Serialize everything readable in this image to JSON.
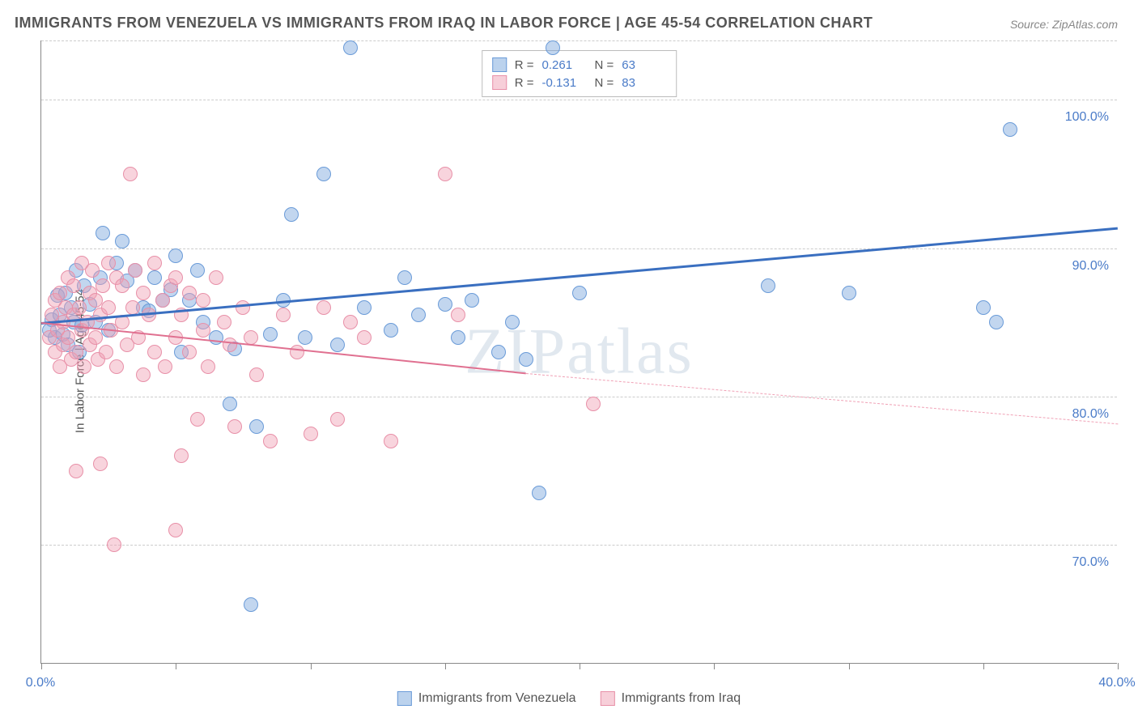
{
  "title": "IMMIGRANTS FROM VENEZUELA VS IMMIGRANTS FROM IRAQ IN LABOR FORCE | AGE 45-54 CORRELATION CHART",
  "source": "Source: ZipAtlas.com",
  "watermark": "ZIPatlas",
  "y_axis_label": "In Labor Force | Age 45-54",
  "chart": {
    "type": "scatter",
    "background_color": "#ffffff",
    "grid_color": "#cccccc",
    "axis_color": "#888888",
    "tick_label_color": "#4a7bc8",
    "xlim": [
      0,
      40
    ],
    "ylim": [
      62,
      104
    ],
    "x_ticks": [
      0,
      5,
      10,
      15,
      20,
      25,
      30,
      35,
      40
    ],
    "x_tick_labels": {
      "0": "0.0%",
      "40": "40.0%"
    },
    "y_gridlines": [
      70,
      80,
      90,
      100,
      104
    ],
    "y_tick_labels": {
      "70": "70.0%",
      "80": "80.0%",
      "90": "90.0%",
      "100": "100.0%"
    },
    "marker_radius": 9,
    "marker_opacity": 0.55,
    "series": [
      {
        "name": "Immigrants from Venezuela",
        "color_fill": "rgba(120,165,220,0.45)",
        "color_stroke": "#6a9bd8",
        "r": "0.261",
        "n": "63",
        "trend": {
          "x1": 0,
          "y1": 85.0,
          "x2": 40,
          "y2": 91.4,
          "color": "#3a6fc0",
          "width": 3,
          "dash": "solid"
        },
        "points": [
          [
            0.4,
            85.2
          ],
          [
            0.5,
            84.0
          ],
          [
            0.6,
            86.8
          ],
          [
            0.7,
            85.5
          ],
          [
            0.8,
            84.2
          ],
          [
            0.9,
            87.0
          ],
          [
            1.0,
            83.5
          ],
          [
            1.1,
            86.0
          ],
          [
            1.2,
            85.0
          ],
          [
            1.3,
            88.5
          ],
          [
            1.5,
            84.8
          ],
          [
            1.6,
            87.5
          ],
          [
            1.8,
            86.2
          ],
          [
            2.0,
            85.0
          ],
          [
            2.2,
            88.0
          ],
          [
            2.5,
            84.5
          ],
          [
            2.8,
            89.0
          ],
          [
            3.0,
            90.5
          ],
          [
            3.2,
            87.8
          ],
          [
            3.5,
            88.5
          ],
          [
            3.8,
            86.0
          ],
          [
            4.0,
            85.8
          ],
          [
            4.2,
            88.0
          ],
          [
            4.5,
            86.5
          ],
          [
            4.8,
            87.2
          ],
          [
            5.2,
            83.0
          ],
          [
            5.5,
            86.5
          ],
          [
            5.8,
            88.5
          ],
          [
            6.0,
            85.0
          ],
          [
            6.5,
            84.0
          ],
          [
            7.0,
            79.5
          ],
          [
            7.2,
            83.2
          ],
          [
            7.8,
            66.0
          ],
          [
            8.0,
            78.0
          ],
          [
            8.5,
            84.2
          ],
          [
            9.0,
            86.5
          ],
          [
            9.3,
            92.3
          ],
          [
            9.8,
            84.0
          ],
          [
            10.5,
            95.0
          ],
          [
            11.0,
            83.5
          ],
          [
            11.5,
            103.5
          ],
          [
            12.0,
            86.0
          ],
          [
            13.0,
            84.5
          ],
          [
            14.0,
            85.5
          ],
          [
            15.0,
            86.2
          ],
          [
            15.5,
            84.0
          ],
          [
            16.0,
            86.5
          ],
          [
            17.0,
            83.0
          ],
          [
            17.5,
            85.0
          ],
          [
            18.0,
            82.5
          ],
          [
            18.5,
            73.5
          ],
          [
            19.0,
            103.5
          ],
          [
            20.0,
            87.0
          ],
          [
            27.0,
            87.5
          ],
          [
            30.0,
            87.0
          ],
          [
            35.0,
            86.0
          ],
          [
            35.5,
            85.0
          ],
          [
            36.0,
            98.0
          ],
          [
            13.5,
            88.0
          ],
          [
            5.0,
            89.5
          ],
          [
            2.3,
            91.0
          ],
          [
            1.4,
            83.0
          ],
          [
            0.3,
            84.5
          ]
        ]
      },
      {
        "name": "Immigrants from Iraq",
        "color_fill": "rgba(240,160,180,0.45)",
        "color_stroke": "#e890a8",
        "r": "-0.131",
        "n": "83",
        "trend_solid": {
          "x1": 0,
          "y1": 85.0,
          "x2": 18,
          "y2": 81.6,
          "color": "#e07090",
          "width": 2
        },
        "trend_dash": {
          "x1": 18,
          "y1": 81.6,
          "x2": 40,
          "y2": 78.2,
          "color": "#f0a0b5",
          "width": 1.5
        },
        "points": [
          [
            0.3,
            84.0
          ],
          [
            0.4,
            85.5
          ],
          [
            0.5,
            83.0
          ],
          [
            0.5,
            86.5
          ],
          [
            0.6,
            84.5
          ],
          [
            0.7,
            82.0
          ],
          [
            0.7,
            87.0
          ],
          [
            0.8,
            85.0
          ],
          [
            0.8,
            83.5
          ],
          [
            0.9,
            86.0
          ],
          [
            1.0,
            84.0
          ],
          [
            1.0,
            88.0
          ],
          [
            1.1,
            82.5
          ],
          [
            1.2,
            85.5
          ],
          [
            1.2,
            87.5
          ],
          [
            1.3,
            83.0
          ],
          [
            1.4,
            86.0
          ],
          [
            1.5,
            84.5
          ],
          [
            1.5,
            89.0
          ],
          [
            1.6,
            82.0
          ],
          [
            1.7,
            85.0
          ],
          [
            1.8,
            87.0
          ],
          [
            1.8,
            83.5
          ],
          [
            1.9,
            88.5
          ],
          [
            2.0,
            84.0
          ],
          [
            2.0,
            86.5
          ],
          [
            2.1,
            82.5
          ],
          [
            2.2,
            85.5
          ],
          [
            2.3,
            87.5
          ],
          [
            2.4,
            83.0
          ],
          [
            2.5,
            86.0
          ],
          [
            2.5,
            89.0
          ],
          [
            2.6,
            84.5
          ],
          [
            2.8,
            82.0
          ],
          [
            2.8,
            88.0
          ],
          [
            3.0,
            85.0
          ],
          [
            3.0,
            87.5
          ],
          [
            3.2,
            83.5
          ],
          [
            3.4,
            86.0
          ],
          [
            3.5,
            88.5
          ],
          [
            3.6,
            84.0
          ],
          [
            3.8,
            81.5
          ],
          [
            3.8,
            87.0
          ],
          [
            3.3,
            95.0
          ],
          [
            4.0,
            85.5
          ],
          [
            4.2,
            83.0
          ],
          [
            4.2,
            89.0
          ],
          [
            4.5,
            86.5
          ],
          [
            4.6,
            82.0
          ],
          [
            4.8,
            87.5
          ],
          [
            5.0,
            84.0
          ],
          [
            5.0,
            88.0
          ],
          [
            5.2,
            76.0
          ],
          [
            5.2,
            85.5
          ],
          [
            5.5,
            83.0
          ],
          [
            5.5,
            87.0
          ],
          [
            5.8,
            78.5
          ],
          [
            6.0,
            84.5
          ],
          [
            6.0,
            86.5
          ],
          [
            6.2,
            82.0
          ],
          [
            6.5,
            88.0
          ],
          [
            6.8,
            85.0
          ],
          [
            7.0,
            83.5
          ],
          [
            7.2,
            78.0
          ],
          [
            7.5,
            86.0
          ],
          [
            7.8,
            84.0
          ],
          [
            8.0,
            81.5
          ],
          [
            8.5,
            77.0
          ],
          [
            9.0,
            85.5
          ],
          [
            9.5,
            83.0
          ],
          [
            10.0,
            77.5
          ],
          [
            10.5,
            86.0
          ],
          [
            11.0,
            78.5
          ],
          [
            11.5,
            85.0
          ],
          [
            12.0,
            84.0
          ],
          [
            13.0,
            77.0
          ],
          [
            15.0,
            95.0
          ],
          [
            15.5,
            85.5
          ],
          [
            2.2,
            75.5
          ],
          [
            2.7,
            70.0
          ],
          [
            1.3,
            75.0
          ],
          [
            5.0,
            71.0
          ],
          [
            20.5,
            79.5
          ]
        ]
      }
    ]
  },
  "legend": {
    "swatch1_fill": "rgba(120,165,220,0.5)",
    "swatch1_stroke": "#6a9bd8",
    "swatch2_fill": "rgba(240,160,180,0.5)",
    "swatch2_stroke": "#e890a8",
    "label1": "Immigrants from Venezuela",
    "label2": "Immigrants from Iraq"
  }
}
